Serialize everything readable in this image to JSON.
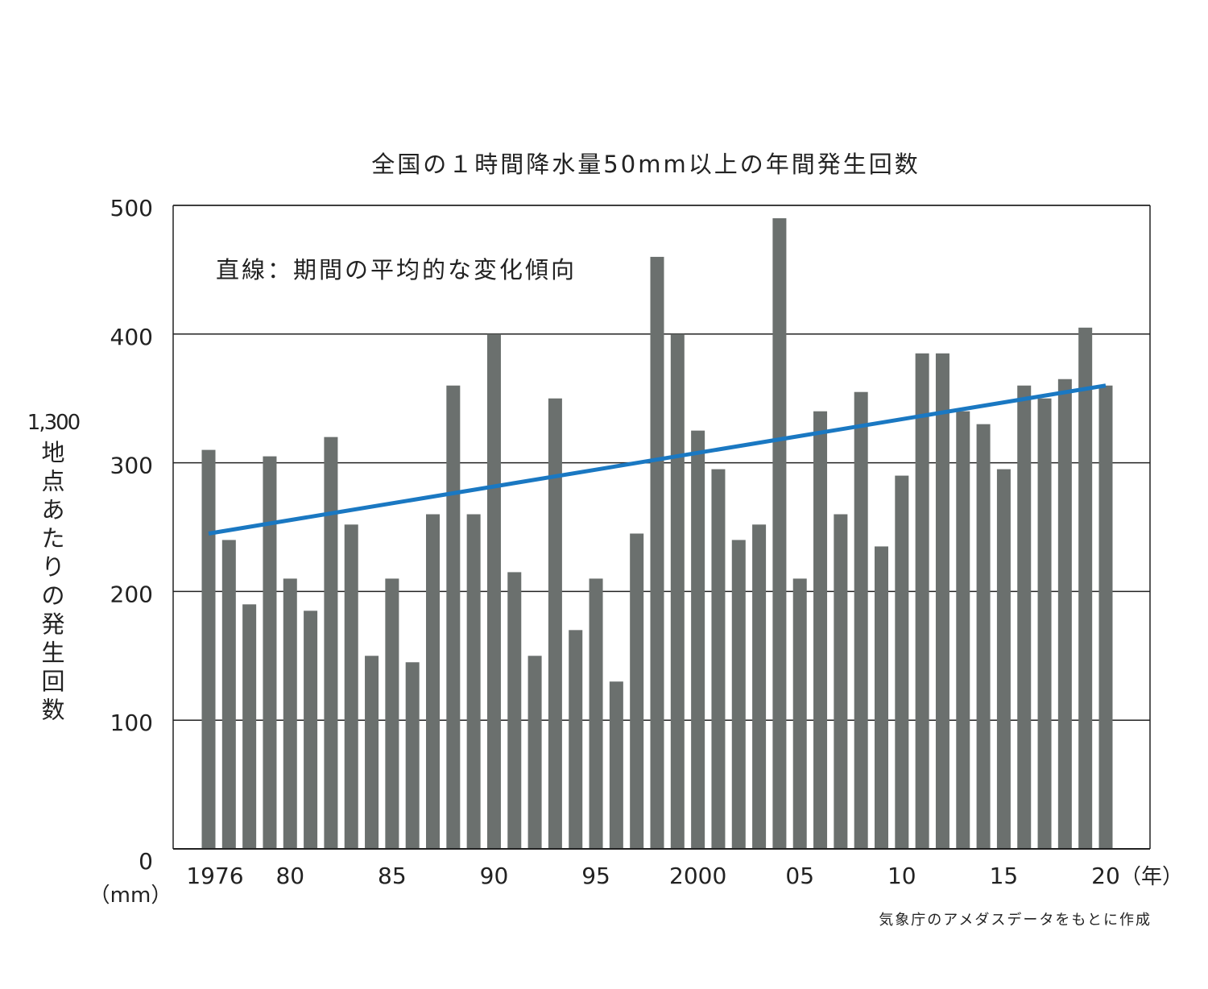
{
  "chart_data": {
    "type": "bar",
    "title": "全国の１時間降水量50mm以上の年間発生回数",
    "annotation": "直線：期間の平均的な変化傾向",
    "ylabel": [
      "1,300",
      "地点あたりの発生回数"
    ],
    "yunit": "（mm）",
    "xunit": "（年）",
    "source": "気象庁のアメダスデータをもとに作成",
    "ylim": [
      0,
      500
    ],
    "yticks": [
      0,
      100,
      200,
      300,
      400,
      500
    ],
    "grid": true,
    "x_tick_labels": [
      {
        "year": 1976,
        "label": "1976"
      },
      {
        "year": 1980,
        "label": "80"
      },
      {
        "year": 1985,
        "label": "85"
      },
      {
        "year": 1990,
        "label": "90"
      },
      {
        "year": 1995,
        "label": "95"
      },
      {
        "year": 2000,
        "label": "2000"
      },
      {
        "year": 2005,
        "label": "05"
      },
      {
        "year": 2010,
        "label": "10"
      },
      {
        "year": 2015,
        "label": "15"
      },
      {
        "year": 2020,
        "label": "20"
      }
    ],
    "categories": [
      1976,
      1977,
      1978,
      1979,
      1980,
      1981,
      1982,
      1983,
      1984,
      1985,
      1986,
      1987,
      1988,
      1989,
      1990,
      1991,
      1992,
      1993,
      1994,
      1995,
      1996,
      1997,
      1998,
      1999,
      2000,
      2001,
      2002,
      2003,
      2004,
      2005,
      2006,
      2007,
      2008,
      2009,
      2010,
      2011,
      2012,
      2013,
      2014,
      2015,
      2016,
      2017,
      2018,
      2019,
      2020
    ],
    "values": [
      310,
      240,
      190,
      305,
      210,
      185,
      320,
      252,
      150,
      210,
      145,
      260,
      360,
      260,
      400,
      215,
      150,
      350,
      170,
      210,
      130,
      245,
      460,
      400,
      325,
      295,
      240,
      252,
      490,
      210,
      340,
      260,
      355,
      235,
      290,
      385,
      385,
      340,
      330,
      295,
      360,
      350,
      365,
      405,
      360
    ],
    "trend": {
      "start": {
        "year": 1976,
        "value": 245
      },
      "end": {
        "year": 2020,
        "value": 360
      }
    },
    "colors": {
      "bar": "#6b706e",
      "trend": "#1a78c2",
      "grid": "#222222"
    }
  }
}
